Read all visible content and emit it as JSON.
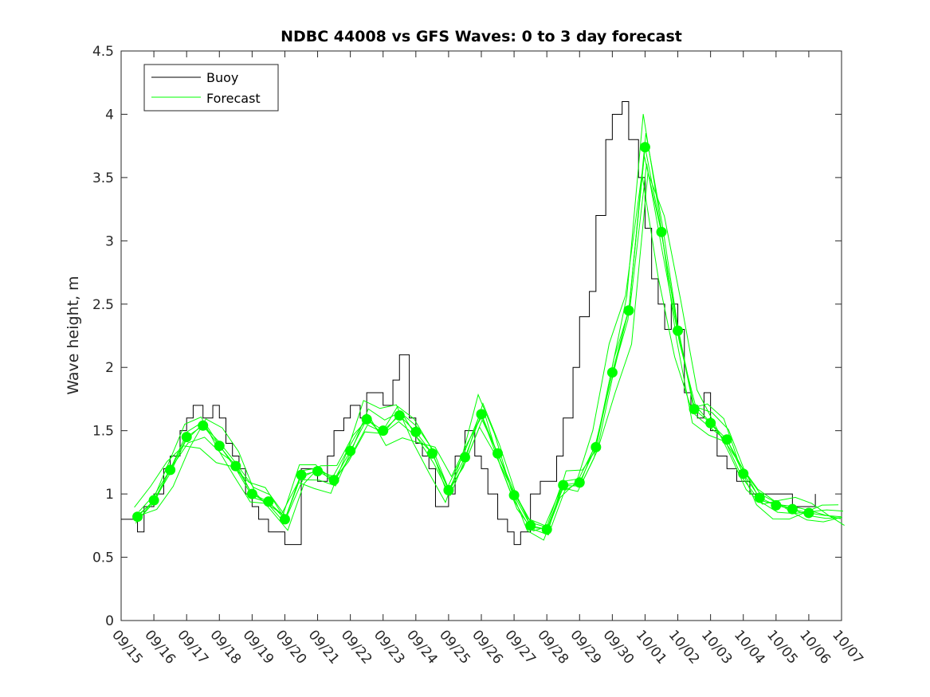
{
  "chart_data": {
    "type": "line",
    "title": "NDBC 44008 vs GFS Waves: 0 to 3 day forecast",
    "xlabel": "",
    "ylabel": "Wave height, m",
    "xlim": [
      0,
      22
    ],
    "ylim": [
      0,
      4.5
    ],
    "grid": false,
    "legend_position": "top-left",
    "x_tick_labels": [
      "09/15",
      "09/16",
      "09/17",
      "09/18",
      "09/19",
      "09/20",
      "09/21",
      "09/22",
      "09/23",
      "09/24",
      "09/25",
      "09/26",
      "09/27",
      "09/28",
      "09/29",
      "09/30",
      "10/01",
      "10/02",
      "10/03",
      "10/04",
      "10/05",
      "10/06",
      "10/07"
    ],
    "y_ticks": [
      0,
      0.5,
      1,
      1.5,
      2,
      2.5,
      3,
      3.5,
      4,
      4.5
    ],
    "y_tick_labels": [
      "0",
      "0.5",
      "1",
      "1.5",
      "2",
      "2.5",
      "3",
      "3.5",
      "4",
      "4.5"
    ],
    "colors": {
      "buoy": "#000000",
      "forecast": "#00ff00"
    },
    "series": [
      {
        "name": "Buoy",
        "color": "#000000",
        "x": [
          0,
          0.3,
          0.5,
          0.7,
          1.0,
          1.3,
          1.5,
          1.8,
          2.0,
          2.2,
          2.5,
          2.8,
          3.0,
          3.2,
          3.4,
          3.6,
          3.8,
          4.0,
          4.2,
          4.5,
          4.8,
          5.0,
          5.3,
          5.5,
          5.8,
          6.0,
          6.3,
          6.5,
          6.8,
          7.0,
          7.3,
          7.5,
          7.8,
          8.0,
          8.3,
          8.5,
          8.8,
          9.0,
          9.2,
          9.4,
          9.6,
          9.8,
          10.0,
          10.2,
          10.5,
          10.8,
          11.0,
          11.2,
          11.5,
          11.8,
          12.0,
          12.2,
          12.5,
          12.8,
          13.0,
          13.3,
          13.5,
          13.8,
          14.0,
          14.3,
          14.5,
          14.8,
          15.0,
          15.3,
          15.5,
          15.8,
          16.0,
          16.2,
          16.4,
          16.6,
          16.8,
          17.0,
          17.2,
          17.4,
          17.6,
          17.8,
          18.0,
          18.2,
          18.5,
          18.8,
          19.0,
          19.2,
          19.5,
          19.8,
          20.0,
          20.3,
          20.5,
          20.8,
          21.0,
          21.2
        ],
        "y": [
          0.8,
          0.8,
          0.7,
          0.9,
          1.0,
          1.2,
          1.3,
          1.5,
          1.6,
          1.7,
          1.6,
          1.7,
          1.6,
          1.4,
          1.3,
          1.2,
          1.0,
          0.9,
          0.8,
          0.7,
          0.7,
          0.6,
          0.6,
          1.2,
          1.2,
          1.1,
          1.3,
          1.5,
          1.6,
          1.7,
          1.6,
          1.8,
          1.8,
          1.7,
          1.9,
          2.1,
          1.6,
          1.4,
          1.3,
          1.2,
          0.9,
          0.9,
          1.0,
          1.3,
          1.5,
          1.3,
          1.2,
          1.0,
          0.8,
          0.7,
          0.6,
          0.7,
          1.0,
          1.1,
          1.1,
          1.3,
          1.6,
          2.0,
          2.4,
          2.6,
          3.2,
          3.8,
          4.0,
          4.1,
          3.8,
          3.5,
          3.1,
          2.7,
          2.5,
          2.3,
          2.5,
          2.3,
          1.8,
          1.7,
          1.6,
          1.8,
          1.5,
          1.3,
          1.2,
          1.1,
          1.1,
          1.0,
          1.0,
          1.0,
          1.0,
          1.0,
          0.9,
          0.9,
          0.9,
          1.0
        ]
      },
      {
        "name": "Forecast",
        "color": "#00ff00",
        "x": [
          0.5,
          1.0,
          1.5,
          2.0,
          2.5,
          3.0,
          3.5,
          4.0,
          4.5,
          5.0,
          5.5,
          6.0,
          6.5,
          7.0,
          7.5,
          8.0,
          8.5,
          9.0,
          9.5,
          10.0,
          10.5,
          11.0,
          11.5,
          12.0,
          12.5,
          13.0,
          13.5,
          14.0,
          14.5,
          15.0,
          15.5,
          16.0,
          16.5,
          17.0,
          17.5,
          18.0,
          18.5,
          19.0,
          19.5,
          20.0,
          20.5,
          21.0,
          21.5,
          22.0
        ],
        "y": [
          0.82,
          0.95,
          1.19,
          1.45,
          1.54,
          1.38,
          1.22,
          1.0,
          0.94,
          0.8,
          1.15,
          1.18,
          1.11,
          1.34,
          1.59,
          1.5,
          1.62,
          1.49,
          1.32,
          1.03,
          1.29,
          1.63,
          1.32,
          0.99,
          0.75,
          0.72,
          1.07,
          1.09,
          1.37,
          1.96,
          2.45,
          3.74,
          3.07,
          2.29,
          1.67,
          1.56,
          1.43,
          1.16,
          0.97,
          0.91,
          0.88,
          0.85,
          0.83,
          0.82
        ]
      }
    ]
  }
}
